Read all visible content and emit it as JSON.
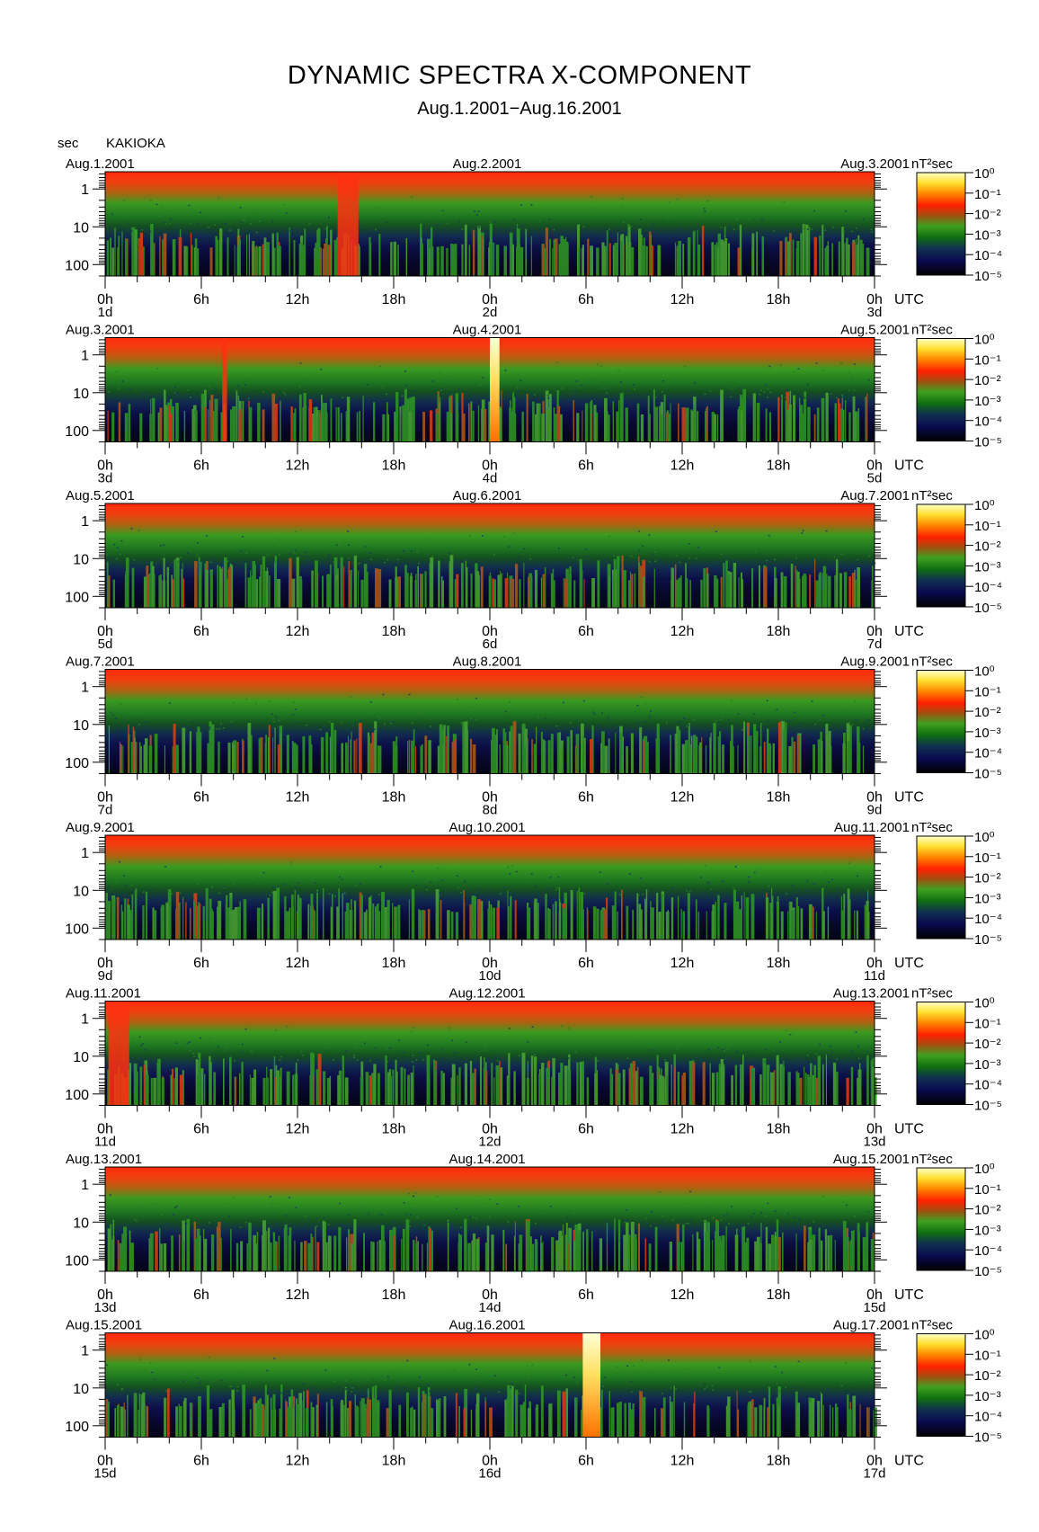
{
  "title": "DYNAMIC SPECTRA X-COMPONENT",
  "subtitle": "Aug.1.2001−Aug.16.2001",
  "station": "KAKIOKA",
  "yaxis_unit": "sec",
  "xaxis_unit": "UTC",
  "colorbar_unit": "nT²sec",
  "colorbar_ticks": [
    "10⁰",
    "10⁻¹",
    "10⁻²",
    "10⁻³",
    "10⁻⁴",
    "10⁻⁵"
  ],
  "colorbar_colors": [
    "#ffffc0",
    "#ffe000",
    "#ff8000",
    "#ff2000",
    "#d01000",
    "#a06000",
    "#40a020",
    "#107010",
    "#103050",
    "#0a0a50",
    "#000000"
  ],
  "chart_data": {
    "type": "heatmap",
    "x_label": "UTC",
    "y_label": "sec",
    "y_scale": "log",
    "y_ticks": [
      "1",
      "10",
      "100"
    ],
    "x_ticks": [
      "0h",
      "6h",
      "12h",
      "18h",
      "0h",
      "6h",
      "12h",
      "18h",
      "0h"
    ],
    "color_scale": {
      "unit": "nT²sec",
      "min": "10⁻⁵",
      "max": "10⁰",
      "scale": "log"
    },
    "panels": [
      {
        "start": "Aug.1.2001",
        "mid": "Aug.2.2001",
        "end": "Aug.3.2001",
        "day_labels": [
          "1d",
          "2d",
          "3d"
        ],
        "events": [
          {
            "start_hour": 14.5,
            "end_hour": 15.8,
            "peak": "10⁻¹"
          }
        ]
      },
      {
        "start": "Aug.3.2001",
        "mid": "Aug.4.2001",
        "end": "Aug.5.2001",
        "day_labels": [
          "3d",
          "4d",
          "5d"
        ],
        "events": [
          {
            "start_hour": 24.0,
            "end_hour": 24.6,
            "peak": "10⁰"
          },
          {
            "start_hour": 7.3,
            "end_hour": 7.6,
            "peak": "10⁻²"
          }
        ]
      },
      {
        "start": "Aug.5.2001",
        "mid": "Aug.6.2001",
        "end": "Aug.7.2001",
        "day_labels": [
          "5d",
          "6d",
          "7d"
        ],
        "events": []
      },
      {
        "start": "Aug.7.2001",
        "mid": "Aug.8.2001",
        "end": "Aug.9.2001",
        "day_labels": [
          "7d",
          "8d",
          "9d"
        ],
        "events": []
      },
      {
        "start": "Aug.9.2001",
        "mid": "Aug.10.2001",
        "end": "Aug.11.2001",
        "day_labels": [
          "9d",
          "10d",
          "11d"
        ],
        "events": []
      },
      {
        "start": "Aug.11.2001",
        "mid": "Aug.12.2001",
        "end": "Aug.13.2001",
        "day_labels": [
          "11d",
          "12d",
          "13d"
        ],
        "events": [
          {
            "start_hour": 0.2,
            "end_hour": 1.5,
            "peak": "10⁻²"
          }
        ]
      },
      {
        "start": "Aug.13.2001",
        "mid": "Aug.14.2001",
        "end": "Aug.15.2001",
        "day_labels": [
          "13d",
          "14d",
          "15d"
        ],
        "events": []
      },
      {
        "start": "Aug.15.2001",
        "mid": "Aug.16.2001",
        "end": "Aug.17.2001",
        "day_labels": [
          "15d",
          "16d",
          "17d"
        ],
        "events": [
          {
            "start_hour": 29.8,
            "end_hour": 30.9,
            "peak": "10⁰"
          }
        ]
      }
    ]
  }
}
